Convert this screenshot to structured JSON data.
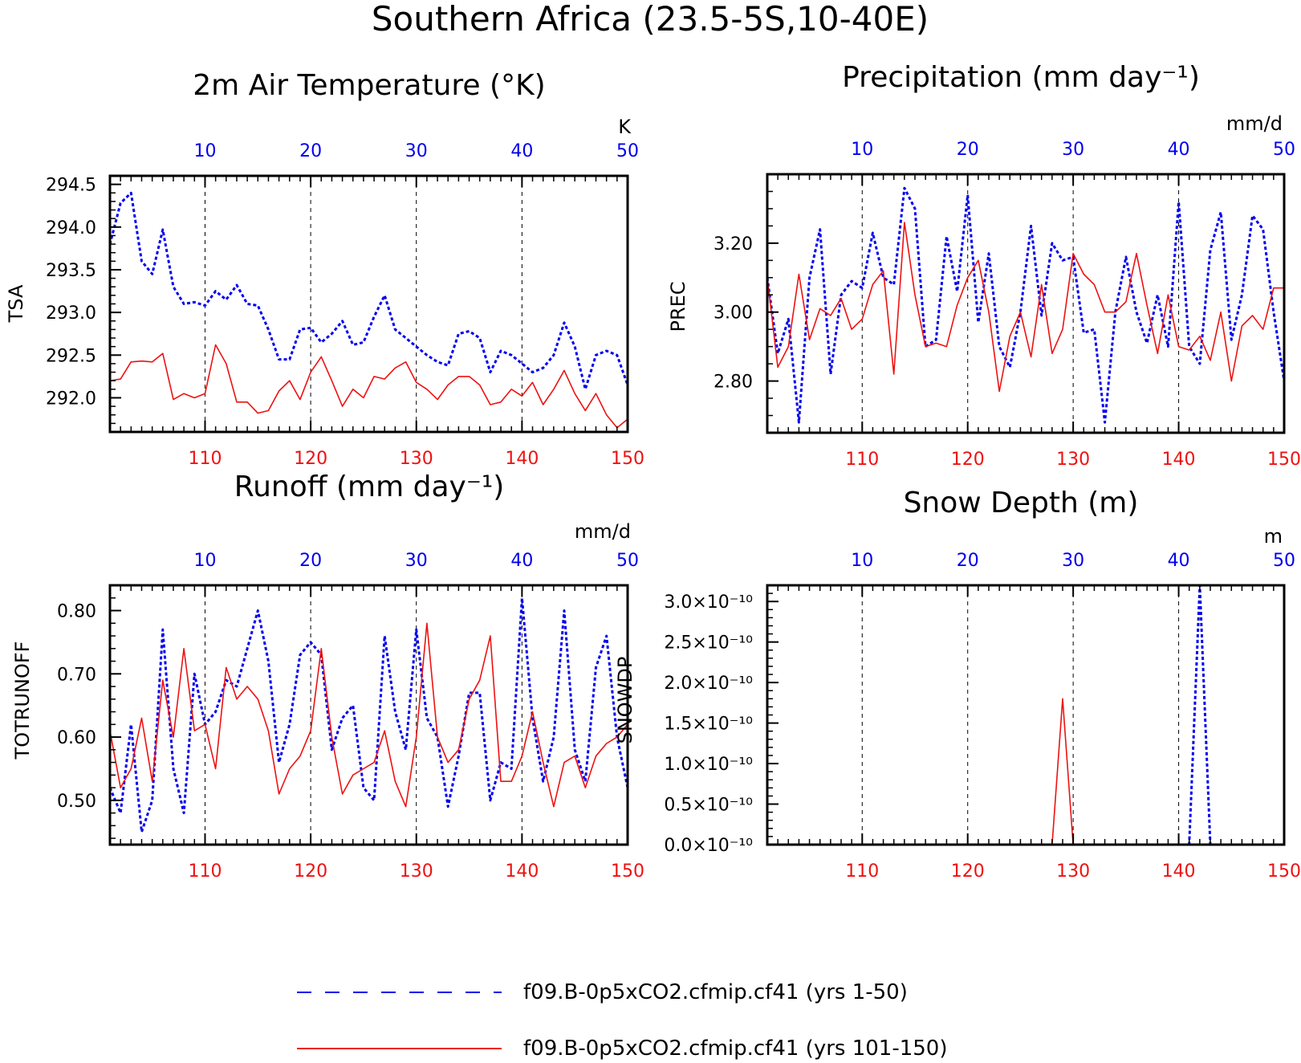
{
  "figure": {
    "title": "Southern Africa (23.5-5S,10-40E)"
  },
  "colors": {
    "series_a": "#0000ee",
    "series_b": "#ee1111",
    "axis": "#000000",
    "grid": "#000000"
  },
  "legend": {
    "placement": "bottom-center",
    "entries": [
      {
        "label": "f09.B-0p5xCO2.cfmip.cf41 (yrs 1-50)",
        "style": "dashed",
        "color": "#0000ee"
      },
      {
        "label": "f09.B-0p5xCO2.cfmip.cf41 (yrs 101-150)",
        "style": "solid",
        "color": "#ee1111"
      }
    ]
  },
  "chart_data": [
    {
      "type": "line",
      "id": "tsa",
      "title": "2m Air Temperature (°K)",
      "unit": "K",
      "ylabel": "TSA",
      "ylim": [
        291.6,
        294.6
      ],
      "yticks": [
        292.0,
        292.5,
        293.0,
        293.5,
        294.0,
        294.5
      ],
      "ytick_labels": [
        "292.0",
        "292.5",
        "293.0",
        "293.5",
        "294.0",
        "294.5"
      ],
      "yminor": 0.1,
      "top_axis": {
        "range": [
          1,
          50
        ],
        "ticks": [
          10,
          20,
          30,
          40,
          50
        ],
        "labels": [
          "10",
          "20",
          "30",
          "40",
          "50"
        ]
      },
      "bottom_axis": {
        "range": [
          101,
          150
        ],
        "ticks": [
          110,
          120,
          130,
          140,
          150
        ],
        "labels": [
          "110",
          "120",
          "130",
          "140",
          "150"
        ]
      },
      "grid": "vertical-dashed",
      "series": [
        {
          "name": "f09.B-0p5xCO2.cfmip.cf41 (yrs 1-50)",
          "axis": "top",
          "values": [
            293.8,
            294.28,
            294.4,
            293.6,
            293.45,
            293.97,
            293.3,
            293.1,
            293.12,
            293.08,
            293.25,
            293.15,
            293.32,
            293.1,
            293.08,
            292.8,
            292.45,
            292.45,
            292.8,
            292.82,
            292.65,
            292.75,
            292.9,
            292.62,
            292.65,
            292.95,
            293.2,
            292.8,
            292.7,
            292.6,
            292.5,
            292.42,
            292.38,
            292.75,
            292.78,
            292.7,
            292.3,
            292.55,
            292.5,
            292.4,
            292.3,
            292.35,
            292.5,
            292.88,
            292.6,
            292.1,
            292.5,
            292.55,
            292.5,
            292.15
          ]
        },
        {
          "name": "f09.B-0p5xCO2.cfmip.cf41 (yrs 101-150)",
          "axis": "bottom",
          "values": [
            292.2,
            292.22,
            292.42,
            292.43,
            292.42,
            292.52,
            291.98,
            292.05,
            292.0,
            292.05,
            292.62,
            292.4,
            291.95,
            291.95,
            291.82,
            291.85,
            292.08,
            292.2,
            291.98,
            292.3,
            292.48,
            292.2,
            291.9,
            292.1,
            292.0,
            292.25,
            292.22,
            292.35,
            292.42,
            292.18,
            292.1,
            291.98,
            292.15,
            292.25,
            292.25,
            292.15,
            291.92,
            291.95,
            292.1,
            292.02,
            292.18,
            291.92,
            292.1,
            292.32,
            292.05,
            291.85,
            292.05,
            291.8,
            291.65,
            291.75
          ]
        }
      ]
    },
    {
      "type": "line",
      "id": "prec",
      "title": "Precipitation (mm day⁻¹)",
      "unit": "mm/d",
      "ylabel": "PREC",
      "ylim": [
        2.65,
        3.4
      ],
      "yticks": [
        2.8,
        3.0,
        3.2
      ],
      "ytick_labels": [
        "2.80",
        "3.00",
        "3.20"
      ],
      "yminor": 0.05,
      "top_axis": {
        "range": [
          1,
          50
        ],
        "ticks": [
          10,
          20,
          30,
          40,
          50
        ],
        "labels": [
          "10",
          "20",
          "30",
          "40",
          "50"
        ]
      },
      "bottom_axis": {
        "range": [
          101,
          150
        ],
        "ticks": [
          110,
          120,
          130,
          140,
          150
        ],
        "labels": [
          "110",
          "120",
          "130",
          "140",
          "150"
        ]
      },
      "grid": "vertical-dashed",
      "series": [
        {
          "name": "f09.B-0p5xCO2.cfmip.cf41 (yrs 1-50)",
          "axis": "top",
          "values": [
            3.1,
            2.88,
            2.98,
            2.68,
            3.1,
            3.24,
            2.82,
            3.05,
            3.09,
            3.07,
            3.23,
            3.1,
            3.08,
            3.36,
            3.3,
            2.9,
            2.92,
            3.22,
            3.06,
            3.34,
            2.97,
            3.17,
            2.9,
            2.84,
            3.0,
            3.25,
            2.99,
            3.2,
            3.15,
            3.16,
            2.94,
            2.95,
            2.68,
            3.0,
            3.16,
            3.0,
            2.91,
            3.05,
            2.9,
            3.32,
            2.9,
            2.85,
            3.18,
            3.29,
            2.92,
            3.05,
            3.28,
            3.24,
            3.0,
            2.8
          ]
        },
        {
          "name": "f09.B-0p5xCO2.cfmip.cf41 (yrs 101-150)",
          "axis": "bottom",
          "values": [
            3.1,
            2.84,
            2.9,
            3.11,
            2.92,
            3.01,
            2.99,
            3.04,
            2.95,
            2.98,
            3.08,
            3.12,
            2.82,
            3.26,
            3.05,
            2.9,
            2.91,
            2.9,
            3.02,
            3.1,
            3.15,
            3.0,
            2.77,
            2.93,
            3.0,
            2.87,
            3.08,
            2.88,
            2.95,
            3.17,
            3.11,
            3.08,
            3.0,
            3.0,
            3.03,
            3.17,
            3.02,
            2.88,
            3.05,
            2.9,
            2.89,
            2.93,
            2.86,
            3.0,
            2.8,
            2.96,
            2.99,
            2.95,
            3.07,
            3.07
          ]
        }
      ]
    },
    {
      "type": "line",
      "id": "totrunoff",
      "title": "Runoff (mm day⁻¹)",
      "unit": "mm/d",
      "ylabel": "TOTRUNOFF",
      "ylim": [
        0.43,
        0.84
      ],
      "yticks": [
        0.5,
        0.6,
        0.7,
        0.8
      ],
      "ytick_labels": [
        "0.50",
        "0.60",
        "0.70",
        "0.80"
      ],
      "yminor": 0.02,
      "top_axis": {
        "range": [
          1,
          50
        ],
        "ticks": [
          10,
          20,
          30,
          40,
          50
        ],
        "labels": [
          "10",
          "20",
          "30",
          "40",
          "50"
        ]
      },
      "bottom_axis": {
        "range": [
          101,
          150
        ],
        "ticks": [
          110,
          120,
          130,
          140,
          150
        ],
        "labels": [
          "110",
          "120",
          "130",
          "140",
          "150"
        ]
      },
      "grid": "vertical-dashed",
      "series": [
        {
          "name": "f09.B-0p5xCO2.cfmip.cf41 (yrs 1-50)",
          "axis": "top",
          "values": [
            0.52,
            0.48,
            0.62,
            0.45,
            0.5,
            0.77,
            0.55,
            0.48,
            0.7,
            0.62,
            0.64,
            0.69,
            0.68,
            0.74,
            0.8,
            0.72,
            0.56,
            0.62,
            0.73,
            0.75,
            0.73,
            0.58,
            0.63,
            0.65,
            0.52,
            0.5,
            0.76,
            0.64,
            0.58,
            0.77,
            0.63,
            0.6,
            0.49,
            0.57,
            0.67,
            0.67,
            0.5,
            0.56,
            0.55,
            0.82,
            0.63,
            0.53,
            0.6,
            0.8,
            0.58,
            0.53,
            0.71,
            0.76,
            0.6,
            0.52
          ]
        },
        {
          "name": "f09.B-0p5xCO2.cfmip.cf41 (yrs 101-150)",
          "axis": "bottom",
          "values": [
            0.61,
            0.52,
            0.55,
            0.63,
            0.53,
            0.69,
            0.6,
            0.74,
            0.61,
            0.62,
            0.55,
            0.71,
            0.66,
            0.68,
            0.66,
            0.61,
            0.51,
            0.55,
            0.57,
            0.61,
            0.74,
            0.6,
            0.51,
            0.54,
            0.55,
            0.56,
            0.61,
            0.53,
            0.49,
            0.6,
            0.78,
            0.6,
            0.56,
            0.58,
            0.66,
            0.69,
            0.76,
            0.53,
            0.53,
            0.57,
            0.64,
            0.56,
            0.49,
            0.56,
            0.57,
            0.52,
            0.57,
            0.59,
            0.6,
            0.62
          ]
        }
      ]
    },
    {
      "type": "line",
      "id": "snowdp",
      "title": "Snow Depth (m)",
      "unit": "m",
      "ylabel": "SNOWDP",
      "ylim": [
        0,
        3.2
      ],
      "yscale_note": "×10⁻¹⁰",
      "yticks": [
        0.0,
        0.5,
        1.0,
        1.5,
        2.0,
        2.5,
        3.0
      ],
      "ytick_labels": [
        "0.0×10⁻¹⁰",
        "0.5×10⁻¹⁰",
        "1.0×10⁻¹⁰",
        "1.5×10⁻¹⁰",
        "2.0×10⁻¹⁰",
        "2.5×10⁻¹⁰",
        "3.0×10⁻¹⁰"
      ],
      "yminor": 0.1,
      "top_axis": {
        "range": [
          1,
          50
        ],
        "ticks": [
          10,
          20,
          30,
          40,
          50
        ],
        "labels": [
          "10",
          "20",
          "30",
          "40",
          "50"
        ]
      },
      "bottom_axis": {
        "range": [
          101,
          150
        ],
        "ticks": [
          110,
          120,
          130,
          140,
          150
        ],
        "labels": [
          "110",
          "120",
          "130",
          "140",
          "150"
        ]
      },
      "grid": "vertical-dashed",
      "series": [
        {
          "name": "f09.B-0p5xCO2.cfmip.cf41 (yrs 1-50)",
          "axis": "top",
          "values": [
            0,
            0,
            0,
            0,
            0,
            0,
            0,
            0,
            0,
            0,
            0,
            0,
            0,
            0,
            0,
            0,
            0,
            0,
            0,
            0,
            0,
            0,
            0,
            0,
            0,
            0,
            0,
            0,
            0,
            0,
            0,
            0,
            0,
            0,
            0,
            0,
            0,
            0,
            0,
            0,
            0,
            3.2,
            0,
            0,
            0,
            0,
            0,
            0,
            0,
            0
          ]
        },
        {
          "name": "f09.B-0p5xCO2.cfmip.cf41 (yrs 101-150)",
          "axis": "bottom",
          "values": [
            0,
            0,
            0,
            0,
            0,
            0,
            0,
            0,
            0,
            0,
            0,
            0,
            0,
            0,
            0,
            0,
            0,
            0,
            0,
            0,
            0,
            0,
            0,
            0,
            0,
            0,
            0,
            0,
            1.8,
            0,
            0,
            0,
            0,
            0,
            0,
            0,
            0,
            0,
            0,
            0,
            0,
            0,
            0,
            0,
            0,
            0,
            0,
            0,
            0,
            0
          ]
        }
      ]
    }
  ]
}
